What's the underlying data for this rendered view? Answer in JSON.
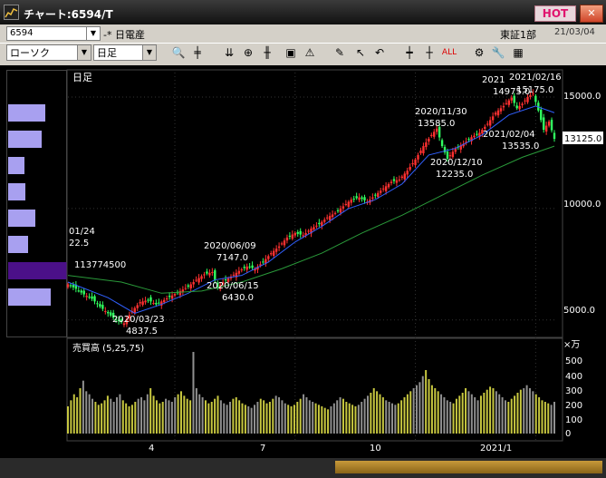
{
  "window": {
    "title": "チャート:6594/T",
    "hot_label": "HOT",
    "close_glyph": "✕"
  },
  "info": {
    "code": "6594",
    "company": "-* 日電産",
    "market": "東証1部",
    "date": "21/03/04"
  },
  "toolbar": {
    "chart_type": "ローソク",
    "period": "日足"
  },
  "left_panel": {
    "bar_levels": [
      0.62,
      0.56,
      0.27,
      0.29,
      0.46,
      0.33,
      1.0,
      0.71
    ]
  },
  "chart_data": {
    "type": "candlestick",
    "period_label": "日足",
    "y_ticks": [
      "15000.0",
      "10000.0",
      "5000.0"
    ],
    "last_price": "13125.0",
    "x_ticks": [
      "4",
      "7",
      "10",
      "2021/1"
    ],
    "annotations": [
      {
        "date": "01/24",
        "value": "22.5"
      },
      {
        "date": "",
        "value": "113774500"
      },
      {
        "date": "2020/03/23",
        "value": "4837.5"
      },
      {
        "date": "2020/06/09",
        "value": "7147.0"
      },
      {
        "date": "2020/06/15",
        "value": "6430.0"
      },
      {
        "date": "2020/11/30",
        "value": "13585.0"
      },
      {
        "date": "2020/12/10",
        "value": "12235.0"
      },
      {
        "date": "2021/02/04",
        "value": "13535.0"
      },
      {
        "date": "2021",
        "value": "14975.0"
      },
      {
        "date": "2021/02/16",
        "value": "15175.0"
      }
    ],
    "price_series": [
      [
        0,
        6600
      ],
      [
        3,
        6400
      ],
      [
        6,
        6150
      ],
      [
        9,
        5950
      ],
      [
        12,
        5600
      ],
      [
        15,
        5300
      ],
      [
        18,
        5000
      ],
      [
        21,
        4850
      ],
      [
        24,
        5400
      ],
      [
        27,
        5800
      ],
      [
        30,
        5900
      ],
      [
        33,
        5700
      ],
      [
        36,
        5900
      ],
      [
        39,
        6100
      ],
      [
        42,
        6300
      ],
      [
        45,
        6500
      ],
      [
        48,
        6800
      ],
      [
        51,
        7050
      ],
      [
        54,
        7150
      ],
      [
        56,
        6430
      ],
      [
        58,
        6700
      ],
      [
        61,
        6950
      ],
      [
        64,
        7200
      ],
      [
        67,
        7400
      ],
      [
        70,
        7300
      ],
      [
        73,
        7600
      ],
      [
        76,
        8000
      ],
      [
        79,
        8300
      ],
      [
        82,
        8700
      ],
      [
        85,
        8900
      ],
      [
        88,
        8800
      ],
      [
        91,
        9100
      ],
      [
        94,
        9300
      ],
      [
        97,
        9600
      ],
      [
        100,
        9800
      ],
      [
        103,
        10100
      ],
      [
        106,
        10400
      ],
      [
        109,
        10500
      ],
      [
        112,
        10300
      ],
      [
        115,
        10600
      ],
      [
        118,
        10900
      ],
      [
        121,
        11200
      ],
      [
        124,
        11300
      ],
      [
        127,
        11700
      ],
      [
        130,
        12200
      ],
      [
        133,
        12800
      ],
      [
        136,
        13300
      ],
      [
        138,
        13585
      ],
      [
        140,
        12800
      ],
      [
        142,
        12235
      ],
      [
        145,
        12700
      ],
      [
        148,
        12900
      ],
      [
        151,
        13200
      ],
      [
        154,
        13400
      ],
      [
        157,
        13800
      ],
      [
        160,
        14300
      ],
      [
        163,
        14600
      ],
      [
        166,
        14975
      ],
      [
        168,
        14500
      ],
      [
        170,
        14700
      ],
      [
        172,
        15000
      ],
      [
        174,
        15175
      ],
      [
        176,
        14400
      ],
      [
        178,
        13535
      ],
      [
        180,
        13900
      ],
      [
        182,
        13125
      ]
    ],
    "ma_short": [
      [
        0,
        6700
      ],
      [
        15,
        6000
      ],
      [
        25,
        5300
      ],
      [
        35,
        5700
      ],
      [
        45,
        6200
      ],
      [
        55,
        6800
      ],
      [
        65,
        7000
      ],
      [
        75,
        7600
      ],
      [
        85,
        8500
      ],
      [
        95,
        9200
      ],
      [
        105,
        10000
      ],
      [
        115,
        10400
      ],
      [
        125,
        11100
      ],
      [
        135,
        12400
      ],
      [
        145,
        12700
      ],
      [
        155,
        13300
      ],
      [
        165,
        14200
      ],
      [
        175,
        14600
      ],
      [
        182,
        14300
      ]
    ],
    "ma_long": [
      [
        0,
        7000
      ],
      [
        20,
        6700
      ],
      [
        35,
        6200
      ],
      [
        50,
        6300
      ],
      [
        65,
        6700
      ],
      [
        80,
        7300
      ],
      [
        95,
        8000
      ],
      [
        110,
        8900
      ],
      [
        125,
        9700
      ],
      [
        140,
        10600
      ],
      [
        155,
        11500
      ],
      [
        170,
        12300
      ],
      [
        182,
        12800
      ]
    ],
    "volume_label": "売買高 (5,25,75)",
    "volume_unit": "×万",
    "volume_ticks": [
      "500",
      "400",
      "300",
      "200",
      "100",
      "0"
    ],
    "volume": [
      180,
      220,
      260,
      240,
      300,
      350,
      280,
      260,
      230,
      210,
      190,
      200,
      220,
      250,
      230,
      210,
      240,
      260,
      220,
      200,
      180,
      190,
      210,
      230,
      240,
      220,
      260,
      300,
      250,
      220,
      200,
      210,
      230,
      220,
      210,
      240,
      260,
      280,
      250,
      230,
      220,
      540,
      300,
      260,
      240,
      220,
      200,
      210,
      230,
      250,
      220,
      200,
      190,
      210,
      230,
      240,
      220,
      200,
      190,
      180,
      170,
      190,
      210,
      230,
      220,
      200,
      210,
      230,
      250,
      240,
      220,
      200,
      190,
      180,
      190,
      210,
      230,
      260,
      240,
      220,
      210,
      200,
      190,
      180,
      170,
      160,
      180,
      200,
      220,
      240,
      230,
      210,
      200,
      190,
      180,
      190,
      210,
      230,
      250,
      270,
      300,
      280,
      260,
      240,
      220,
      210,
      200,
      190,
      200,
      220,
      240,
      260,
      280,
      300,
      320,
      340,
      380,
      420,
      360,
      320,
      300,
      280,
      260,
      240,
      220,
      210,
      200,
      230,
      250,
      270,
      300,
      280,
      260,
      240,
      220,
      250,
      270,
      290,
      310,
      300,
      280,
      260,
      240,
      220,
      210,
      230,
      250,
      270,
      290,
      300,
      320,
      300,
      280,
      260,
      240,
      220,
      210,
      200,
      190,
      210
    ]
  }
}
